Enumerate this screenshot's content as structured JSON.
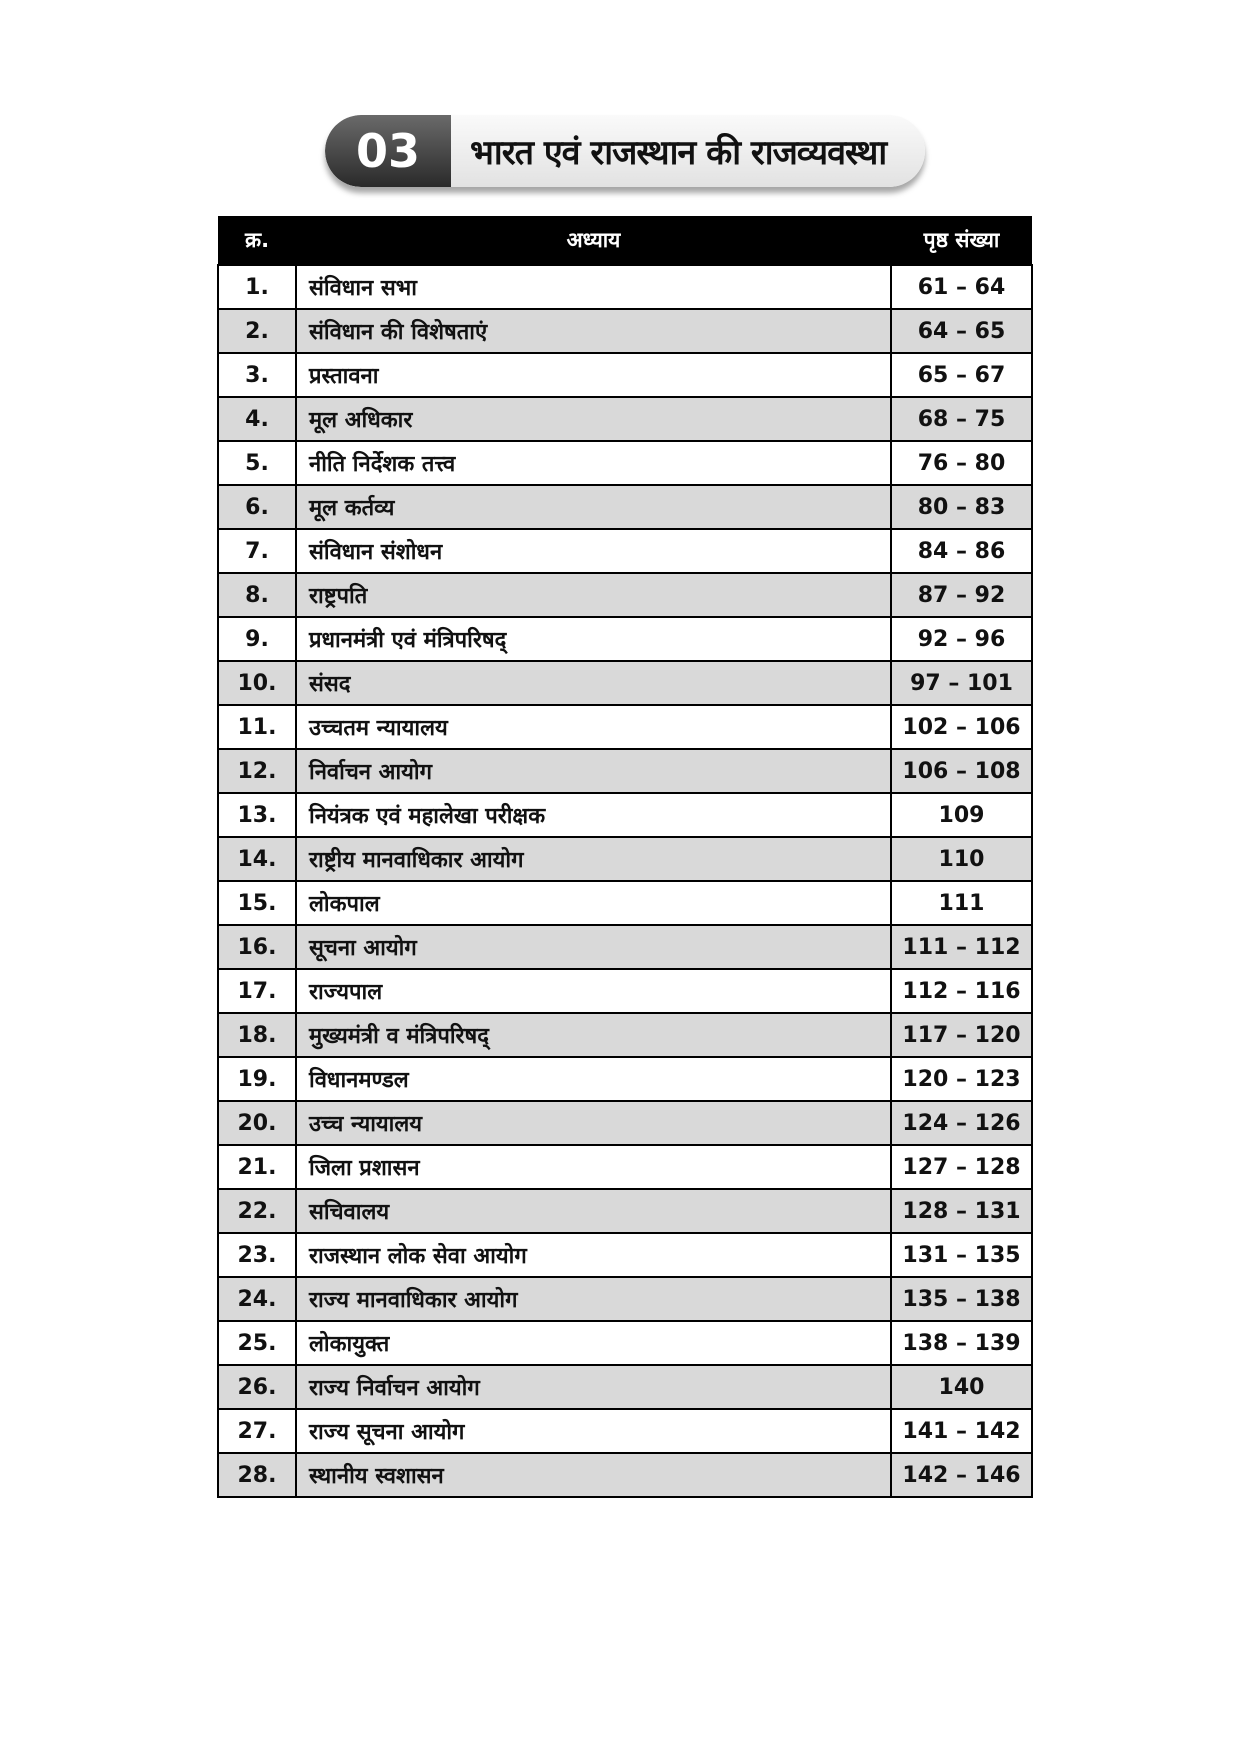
{
  "banner": {
    "number": "03",
    "title": "भारत एवं राजस्थान की राजव्यवस्था"
  },
  "table": {
    "headers": [
      "क्र.",
      "अध्याय",
      "पृष्ठ संख्या"
    ],
    "rows": [
      [
        "1.",
        "संविधान सभा",
        "61 – 64"
      ],
      [
        "2.",
        "संविधान की विशेषताएं",
        "64 – 65"
      ],
      [
        "3.",
        "प्रस्तावना",
        "65 – 67"
      ],
      [
        "4.",
        "मूल अधिकार",
        "68 – 75"
      ],
      [
        "5.",
        "नीति निर्देशक तत्त्व",
        "76 – 80"
      ],
      [
        "6.",
        "मूल कर्तव्य",
        "80 – 83"
      ],
      [
        "7.",
        "संविधान संशोधन",
        "84 – 86"
      ],
      [
        "8.",
        "राष्ट्रपति",
        "87 – 92"
      ],
      [
        "9.",
        "प्रधानमंत्री एवं मंत्रिपरिषद्",
        "92 – 96"
      ],
      [
        "10.",
        "संसद",
        "97 – 101"
      ],
      [
        "11.",
        "उच्चतम न्यायालय",
        "102 – 106"
      ],
      [
        "12.",
        "निर्वाचन आयोग",
        "106 – 108"
      ],
      [
        "13.",
        "नियंत्रक एवं महालेखा परीक्षक",
        "109"
      ],
      [
        "14.",
        "राष्ट्रीय मानवाधिकार आयोग",
        "110"
      ],
      [
        "15.",
        "लोकपाल",
        "111"
      ],
      [
        "16.",
        "सूचना आयोग",
        "111 – 112"
      ],
      [
        "17.",
        "राज्यपाल",
        "112 – 116"
      ],
      [
        "18.",
        "मुख्यमंत्री व मंत्रिपरिषद्",
        "117 – 120"
      ],
      [
        "19.",
        "विधानमण्डल",
        "120 – 123"
      ],
      [
        "20.",
        "उच्च न्यायालय",
        "124 – 126"
      ],
      [
        "21.",
        "जिला प्रशासन",
        "127 – 128"
      ],
      [
        "22.",
        "सचिवालय",
        "128 – 131"
      ],
      [
        "23.",
        "राजस्थान लोक सेवा आयोग",
        "131 – 135"
      ],
      [
        "24.",
        "राज्य मानवाधिकार आयोग",
        "135 – 138"
      ],
      [
        "25.",
        "लोकायुक्त",
        "138 – 139"
      ],
      [
        "26.",
        "राज्य निर्वाचन आयोग",
        "140"
      ],
      [
        "27.",
        "राज्य सूचना आयोग",
        "141 – 142"
      ],
      [
        "28.",
        "स्थानीय स्वशासन",
        "142 – 146"
      ]
    ]
  }
}
